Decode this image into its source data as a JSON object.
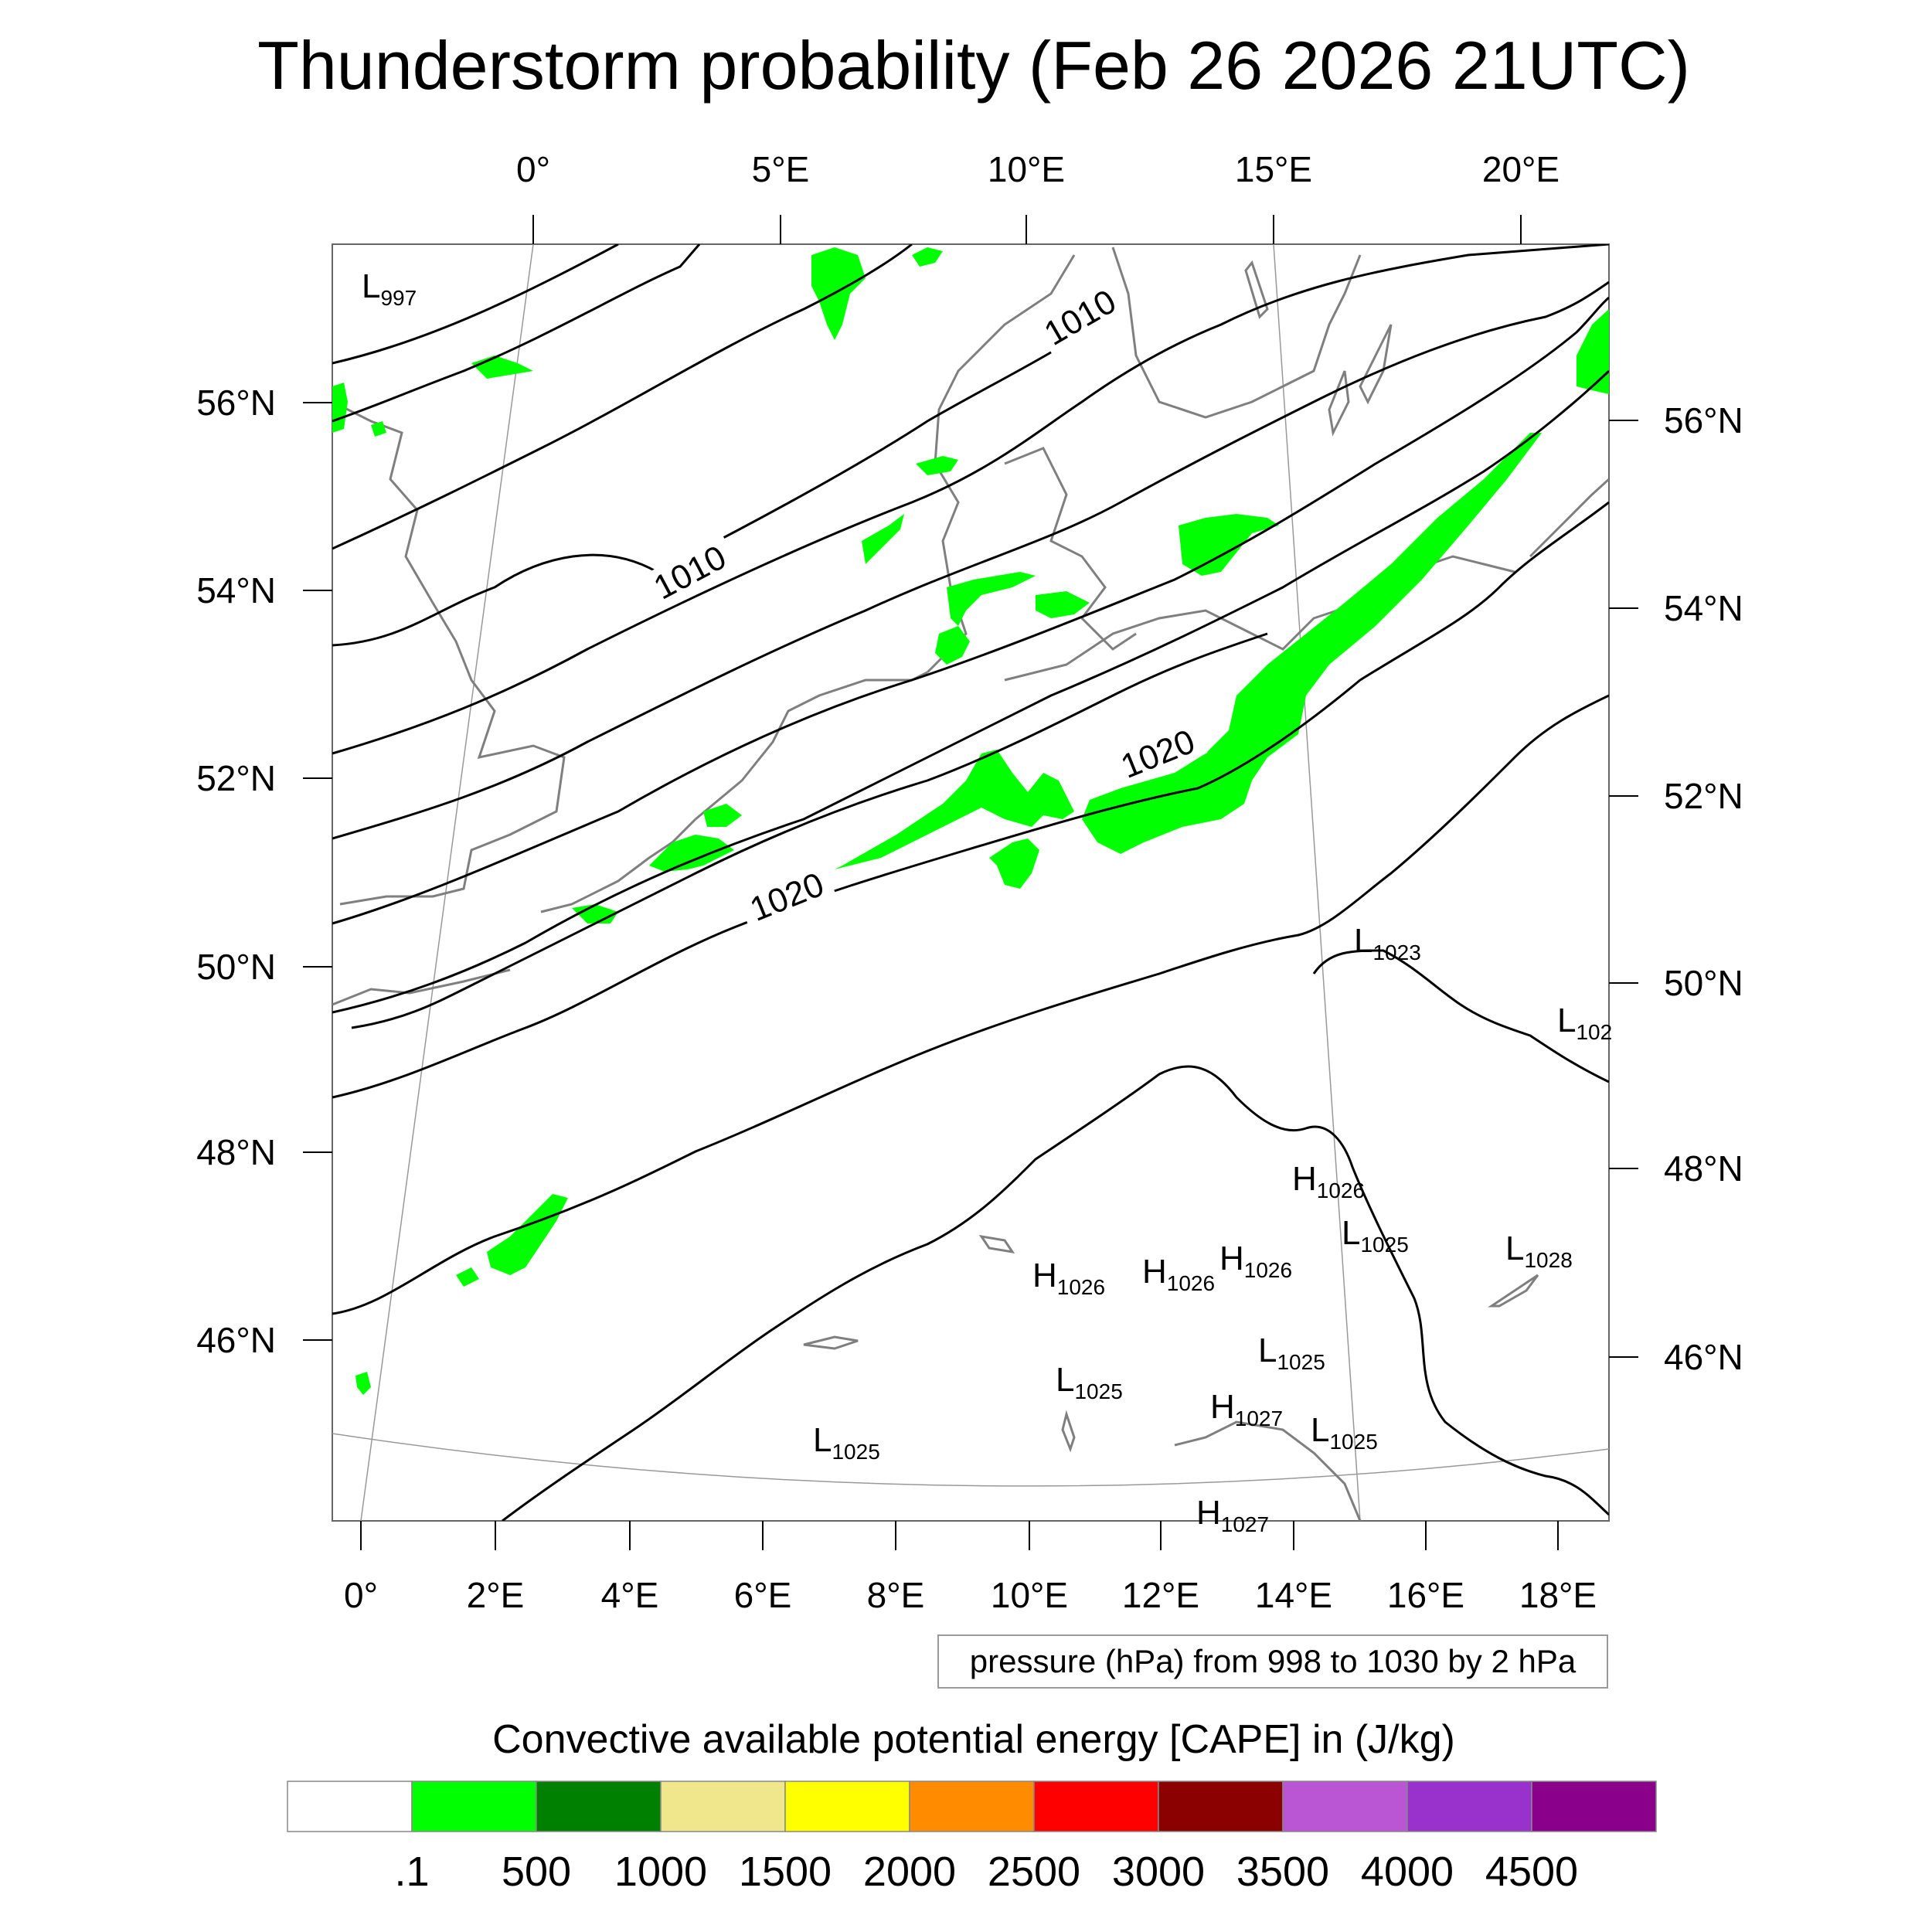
{
  "title": "Thunderstorm probability (Feb 26 2026 21UTC)",
  "top_lon_labels": [
    "0°",
    "5°E",
    "10°E",
    "15°E",
    "20°E"
  ],
  "bottom_lon_labels": [
    "0°",
    "2°E",
    "4°E",
    "6°E",
    "8°E",
    "10°E",
    "12°E",
    "14°E",
    "16°E",
    "18°E"
  ],
  "left_lat_labels": [
    "56°N",
    "54°N",
    "52°N",
    "50°N",
    "48°N",
    "46°N"
  ],
  "right_lat_labels": [
    "56°N",
    "54°N",
    "52°N",
    "50°N",
    "48°N",
    "46°N"
  ],
  "contour_labels": [
    "1010",
    "1010",
    "1020",
    "1020"
  ],
  "pressure_centers": [
    {
      "type": "L",
      "value": "997"
    },
    {
      "type": "L",
      "value": "1023"
    },
    {
      "type": "L",
      "value": "102"
    },
    {
      "type": "H",
      "value": "1026"
    },
    {
      "type": "L",
      "value": "1025"
    },
    {
      "type": "L",
      "value": "1028"
    },
    {
      "type": "H",
      "value": "1026"
    },
    {
      "type": "H",
      "value": "1026"
    },
    {
      "type": "H",
      "value": "1026"
    },
    {
      "type": "L",
      "value": "1025"
    },
    {
      "type": "L",
      "value": "1025"
    },
    {
      "type": "H",
      "value": "1027"
    },
    {
      "type": "L",
      "value": "1025"
    },
    {
      "type": "L",
      "value": "1025"
    },
    {
      "type": "H",
      "value": "1027"
    }
  ],
  "contour_info": "pressure (hPa) from 998 to 1030 by 2 hPa",
  "colorbar": {
    "title": "Convective available potential energy [CAPE] in (J/kg)",
    "colors": [
      "#ffffff",
      "#00ff00",
      "#008000",
      "#f0e68c",
      "#ffff00",
      "#ff8c00",
      "#ff0000",
      "#8b0000",
      "#ba55d3",
      "#9932cc",
      "#8b008b"
    ],
    "labels": [
      ".1",
      "500",
      "1000",
      "1500",
      "2000",
      "2500",
      "3000",
      "3500",
      "4000",
      "4500"
    ]
  }
}
